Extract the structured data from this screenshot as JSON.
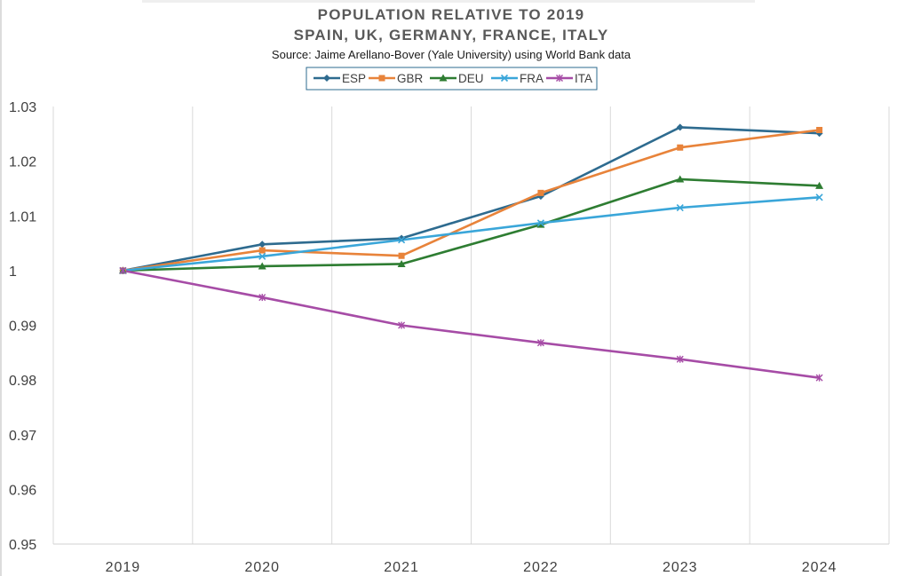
{
  "chart_data": {
    "type": "line",
    "title": "POPULATION RELATIVE TO 2019",
    "subtitle": "SPAIN, UK, GERMANY, FRANCE, ITALY",
    "source": "Source: Jaime Arellano-Bover (Yale University) using World Bank data",
    "categories": [
      "2019",
      "2020",
      "2021",
      "2022",
      "2023",
      "2024"
    ],
    "yticks": [
      "0.95",
      "0.96",
      "0.97",
      "0.98",
      "0.99",
      "1",
      "1.01",
      "1.02",
      "1.03"
    ],
    "ylim": [
      0.95,
      1.03
    ],
    "grid": "vertical",
    "legend_position": "top",
    "series": [
      {
        "name": "ESP",
        "color": "#2e6b8f",
        "marker": "diamond",
        "values": [
          1.0,
          1.0048,
          1.0059,
          1.0136,
          1.0262,
          1.0251
        ]
      },
      {
        "name": "GBR",
        "color": "#e8833a",
        "marker": "square",
        "values": [
          1.0,
          1.0037,
          1.0027,
          1.0142,
          1.0225,
          1.0257
        ]
      },
      {
        "name": "DEU",
        "color": "#2e7d32",
        "marker": "triangle",
        "values": [
          1.0,
          1.0008,
          1.0012,
          1.0084,
          1.0167,
          1.0155
        ]
      },
      {
        "name": "FRA",
        "color": "#3aa6d9",
        "marker": "x",
        "values": [
          1.0,
          1.0026,
          1.0056,
          1.0087,
          1.0115,
          1.0134
        ]
      },
      {
        "name": "ITA",
        "color": "#a64ca6",
        "marker": "star",
        "values": [
          1.0,
          0.9951,
          0.99,
          0.9868,
          0.9838,
          0.9804
        ]
      }
    ]
  }
}
